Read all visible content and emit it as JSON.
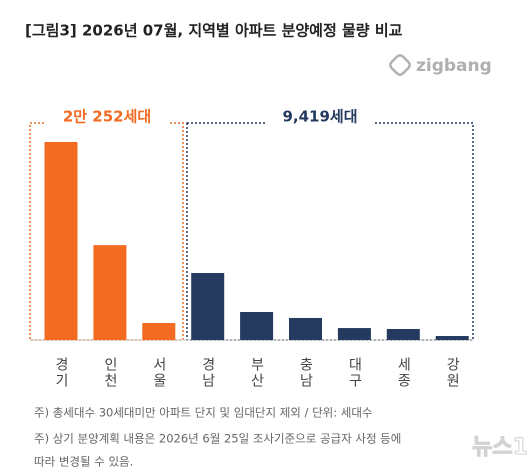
{
  "chart_data": {
    "type": "bar",
    "title": "[그림3] 2026년 07월, 지역별 아파트 분양예정 물량 비교",
    "logo": "zigbang",
    "categories": [
      "경기",
      "인천",
      "서울",
      "경남",
      "부산",
      "충남",
      "대구",
      "세종",
      "강원"
    ],
    "values": [
      12940,
      6200,
      1110,
      4380,
      1830,
      1440,
      780,
      720,
      260
    ],
    "colors": [
      "#f26b21",
      "#f26b21",
      "#f26b21",
      "#243a5e",
      "#243a5e",
      "#243a5e",
      "#243a5e",
      "#243a5e",
      "#243a5e"
    ],
    "annotations": [
      "2만 252세대",
      "9,419세대"
    ],
    "notes": [
      "주) 총세대수 30세대미만 아파트  단지 및 임대단지 제외 / 단위: 세대수",
      "주) 상기 분양계획 내용은 2026년 6월 25일 조사기준으로 공급자 사정 등에",
      "따라 변경될 수 있음."
    ],
    "watermark": "뉴스1"
  }
}
